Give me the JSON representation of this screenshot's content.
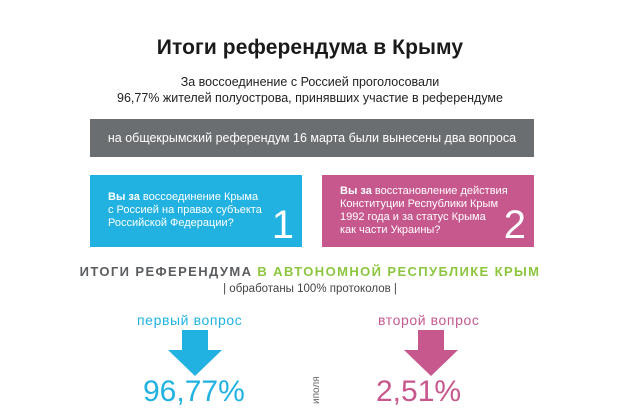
{
  "header": {
    "title": "Итоги референдума в Крыму",
    "subtitle_line1": "За воссоединение с Россией проголосовали",
    "subtitle_line2": "96,77% жителей полуострова, принявших участие в референдуме"
  },
  "info_bar": {
    "text": "на общекрымский референдум 16 марта были вынесены два вопроса"
  },
  "questions": [
    {
      "lead": "Вы за",
      "text_line1": " воссоединение Крыма",
      "text_line2": "с Россией на правах субъекта",
      "text_line3": "Российской Федерации?",
      "number": "1"
    },
    {
      "lead": "Вы за",
      "text_line1": " восстановление действия",
      "text_line2": "Конституции Республики Крым",
      "text_line3": "1992 года и за статус Крыма",
      "text_line4": "как части Украины?",
      "number": "2"
    }
  ],
  "results": {
    "title_gray": "ИТОГИ РЕФЕРЕНДУМА",
    "title_green": "В АВТОНОМНОЙ РЕСПУБЛИКЕ КРЫМ",
    "protocols": "| обработаны 100% протоколов |",
    "first_label": "первый вопрос",
    "second_label": "второй вопрос",
    "first_value": "96,77%",
    "second_value": "2,51%",
    "side_note": "иполя"
  },
  "colors": {
    "blue": "#21b2e2",
    "pink": "#c7588e",
    "gray_bar": "#6b6e70",
    "green": "#8cc63f"
  }
}
